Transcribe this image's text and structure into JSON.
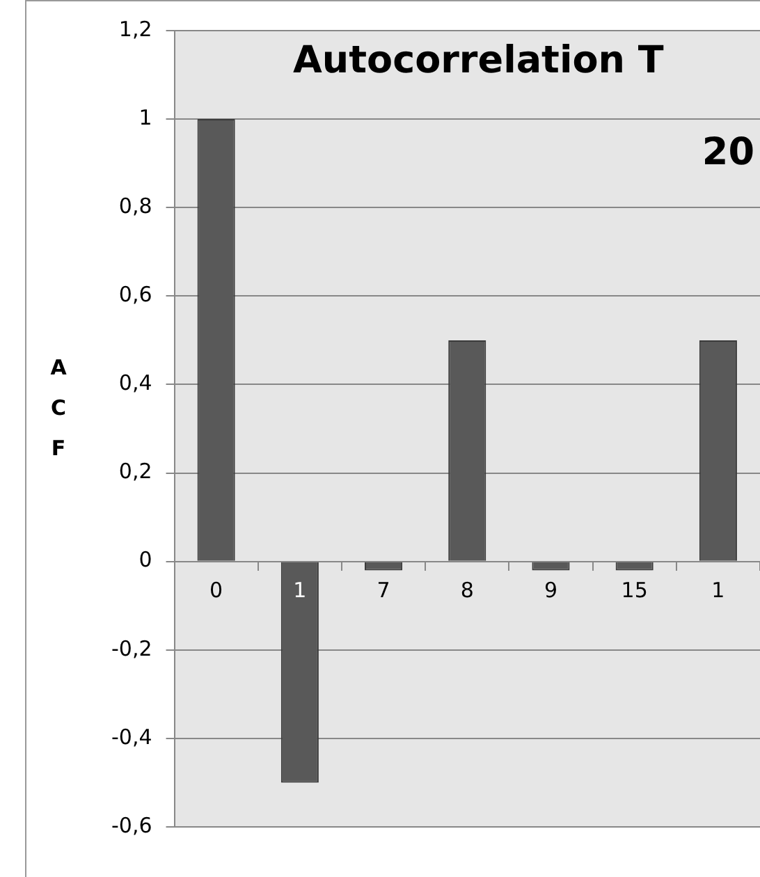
{
  "chart_data": {
    "type": "bar",
    "title": "Autocorrelation T\n20",
    "ylabel": "ACF",
    "categories": [
      "0",
      "1",
      "7",
      "8",
      "9",
      "15",
      "1"
    ],
    "values": [
      1,
      -0.5,
      -0.02,
      0.5,
      -0.02,
      -0.02,
      0.5
    ],
    "color": "#595959",
    "ylim": [
      -0.6,
      1.2
    ],
    "yticks": [
      {
        "value": -0.6,
        "label": "-0,6"
      },
      {
        "value": -0.4,
        "label": "-0,4"
      },
      {
        "value": -0.2,
        "label": "-0,2"
      },
      {
        "value": 0,
        "label": "0"
      },
      {
        "value": 0.2,
        "label": "0,2"
      },
      {
        "value": 0.4,
        "label": "0,4"
      },
      {
        "value": 0.6,
        "label": "0,6"
      },
      {
        "value": 0.8,
        "label": "0,8"
      },
      {
        "value": 1,
        "label": "1"
      },
      {
        "value": 1.2,
        "label": "1,2"
      }
    ],
    "grid": "y",
    "legend": false
  }
}
